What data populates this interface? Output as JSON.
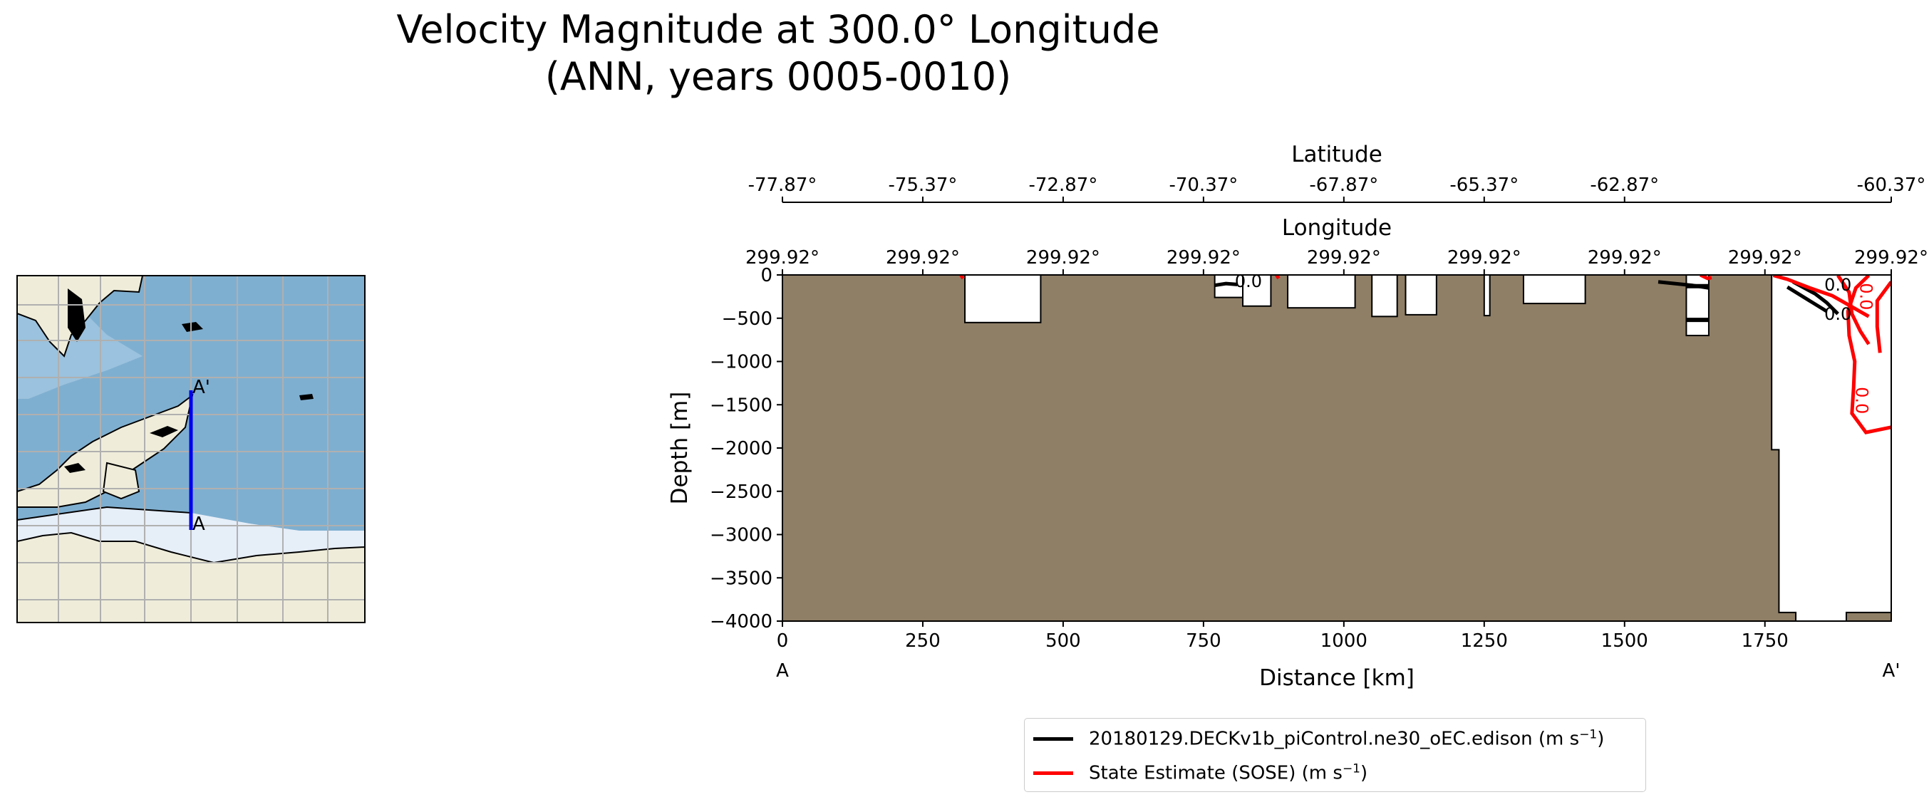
{
  "title_line1": "Velocity Magnitude at 300.0° Longitude",
  "title_line2": "(ANN, years 0005-0010)",
  "map": {
    "start_label": "A",
    "end_label": "A'",
    "colors": {
      "ocean": "#7fafd0",
      "land": "#efedda",
      "ice": "#e6eef8",
      "grid": "#b0b0b0",
      "transect": "#0000ee"
    }
  },
  "chart_data": {
    "type": "contour",
    "xlabel": "Distance [km]",
    "ylabel": "Depth [m]",
    "xlim": [
      0,
      1975
    ],
    "ylim": [
      -4000,
      0
    ],
    "x_ticks": [
      0,
      250,
      500,
      750,
      1000,
      1250,
      1500,
      1750
    ],
    "y_ticks": [
      0,
      -500,
      -1000,
      -1500,
      -2000,
      -2500,
      -3000,
      -3500,
      -4000
    ],
    "y_tick_labels": [
      "0",
      "−500",
      "−1000",
      "−1500",
      "−2000",
      "−2500",
      "−3000",
      "−3500",
      "−4000"
    ],
    "x_end_labels": [
      "A",
      "A'"
    ],
    "longitude_axis": {
      "label": "Longitude",
      "ticks": [
        "299.92°",
        "299.92°",
        "299.92°",
        "299.92°",
        "299.92°",
        "299.92°",
        "299.92°",
        "299.92°"
      ]
    },
    "latitude_axis": {
      "label": "Latitude",
      "ticks": [
        "-77.87°",
        "-75.37°",
        "-72.87°",
        "-70.37°",
        "-67.87°",
        "-65.37°",
        "-62.87°",
        "-60.37°"
      ]
    },
    "bathymetry_color": "#8f7f66",
    "ocean_pockets": [
      {
        "x0": 325,
        "x1": 460,
        "depth": 550
      },
      {
        "x0": 770,
        "x1": 820,
        "depth": 260
      },
      {
        "x0": 820,
        "x1": 870,
        "depth": 360
      },
      {
        "x0": 900,
        "x1": 1020,
        "depth": 380
      },
      {
        "x0": 1050,
        "x1": 1095,
        "depth": 480
      },
      {
        "x0": 1110,
        "x1": 1165,
        "depth": 460
      },
      {
        "x0": 1250,
        "x1": 1260,
        "depth": 470
      },
      {
        "x0": 1320,
        "x1": 1430,
        "depth": 330
      },
      {
        "x0": 1610,
        "x1": 1650,
        "depth": 700
      }
    ],
    "series": [
      {
        "name": "20180129.DECKv1b_piControl.ne30_oEC.edison",
        "color": "#000000",
        "contour_label": "0.0",
        "contours": [
          [
            [
              770,
              120
            ],
            [
              790,
              100
            ],
            [
              810,
              110
            ]
          ],
          [
            [
              1560,
              80
            ],
            [
              1620,
              120
            ],
            [
              1650,
              150
            ]
          ],
          [
            [
              1800,
              80
            ],
            [
              1840,
              220
            ],
            [
              1860,
              320
            ],
            [
              1880,
              450
            ]
          ],
          [
            [
              1790,
              140
            ],
            [
              1830,
              300
            ],
            [
              1860,
              420
            ]
          ]
        ]
      },
      {
        "name": "State Estimate (SOSE)",
        "color": "#ff0000",
        "contour_label": "0.0",
        "contours": [
          [
            [
              1765,
              5
            ],
            [
              1790,
              50
            ],
            [
              1830,
              150
            ],
            [
              1870,
              240
            ],
            [
              1900,
              350
            ],
            [
              1935,
              480
            ]
          ],
          [
            [
              1880,
              5
            ],
            [
              1900,
              200
            ],
            [
              1905,
              450
            ],
            [
              1920,
              650
            ],
            [
              1935,
              800
            ]
          ],
          [
            [
              1935,
              5
            ],
            [
              1912,
              150
            ],
            [
              1898,
              420
            ],
            [
              1900,
              700
            ],
            [
              1910,
              1000
            ],
            [
              1908,
              1300
            ],
            [
              1905,
              1600
            ],
            [
              1930,
              1820
            ],
            [
              1975,
              1760
            ]
          ],
          [
            [
              1975,
              80
            ],
            [
              1950,
              300
            ],
            [
              1950,
              600
            ],
            [
              1955,
              900
            ]
          ],
          [
            [
              318,
              0
            ],
            [
              322,
              40
            ]
          ],
          [
            [
              880,
              0
            ],
            [
              884,
              40
            ]
          ],
          [
            [
              1635,
              0
            ],
            [
              1648,
              40
            ],
            [
              1655,
              30
            ]
          ]
        ]
      }
    ]
  },
  "legend": {
    "entries": [
      {
        "label": "20180129.DECKv1b_piControl.ne30_oEC.edison (m s",
        "color": "#000000"
      },
      {
        "label": "State Estimate (SOSE) (m s",
        "color": "#ff0000"
      }
    ],
    "unit_exponent": "−1",
    "unit_close": ")"
  }
}
